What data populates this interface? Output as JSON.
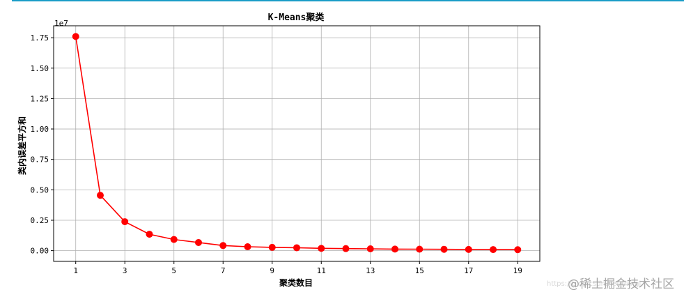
{
  "chart_data": {
    "type": "line",
    "title": "K-Means聚类",
    "xlabel": "聚类数目",
    "ylabel": "类内误差平方和",
    "y_offset_label": "1e7",
    "x": [
      1,
      2,
      3,
      4,
      5,
      6,
      7,
      8,
      9,
      10,
      11,
      12,
      13,
      14,
      15,
      16,
      17,
      18,
      19
    ],
    "x_ticks": [
      "1",
      "3",
      "5",
      "7",
      "9",
      "11",
      "13",
      "15",
      "17",
      "19"
    ],
    "y_ticks": [
      "0.00",
      "0.25",
      "0.50",
      "0.75",
      "1.00",
      "1.25",
      "1.50",
      "1.75"
    ],
    "series": [
      {
        "color": "#ff0000",
        "marker": "circle",
        "values": [
          17600000,
          4550000,
          2380000,
          1350000,
          920000,
          670000,
          420000,
          320000,
          270000,
          240000,
          190000,
          170000,
          150000,
          130000,
          120000,
          110000,
          100000,
          90000,
          80000
        ]
      }
    ],
    "xlim": [
      0.1,
      19.9
    ],
    "ylim": [
      -880000,
      18480000
    ],
    "grid": true,
    "line_color": "#ff0000",
    "grid_color": "#b0b0b0"
  },
  "watermark": {
    "text": "@稀土掘金技术社区",
    "url": "https://blog.csdn.net/tiangj"
  }
}
